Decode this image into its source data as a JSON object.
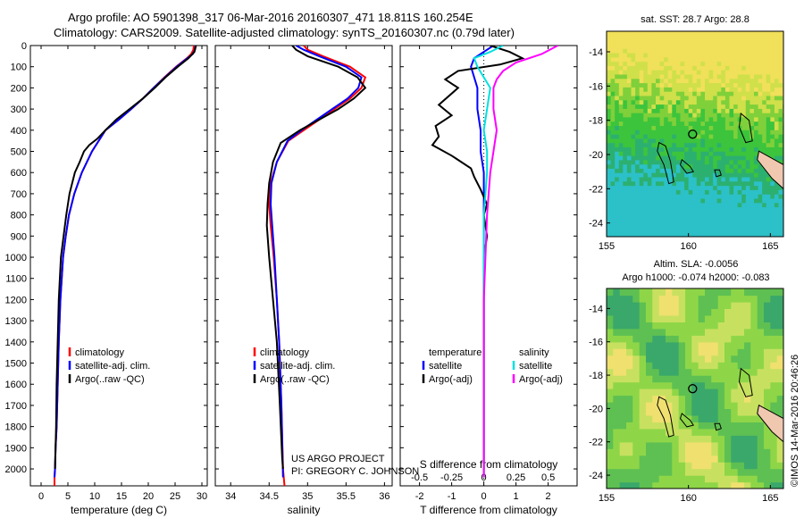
{
  "header": {
    "line1": "Argo profile: AO 5901398_317 06-Mar-2016 20160307_471 18.811S 160.254E",
    "line2": "Climatology: CARS2009. Satellite-adjusted climatology: synTS_20160307.nc (0.79d later)"
  },
  "colors": {
    "climatology": "#ff0000",
    "satellite": "#0000ff",
    "argo": "#000000",
    "sat_salinity": "#00e0e0",
    "argo_salinity": "#ff00ff"
  },
  "chart_data": [
    {
      "type": "line",
      "id": "temperature",
      "xlabel": "temperature (deg C)",
      "xlim": [
        -2,
        31
      ],
      "xticks": [
        0,
        5,
        10,
        15,
        20,
        25,
        30
      ],
      "ylim": [
        0,
        2080
      ],
      "yticks": [
        0,
        100,
        200,
        300,
        400,
        500,
        600,
        700,
        800,
        900,
        1000,
        1100,
        1200,
        1300,
        1400,
        1500,
        1600,
        1700,
        1800,
        1900,
        2000
      ],
      "legend": [
        "climatology",
        "satellite-adj. clim.",
        "Argo(..raw -QC)"
      ],
      "series": [
        {
          "name": "climatology",
          "color": "#ff0000",
          "x": [
            28.5,
            28.4,
            28.0,
            27.2,
            25.2,
            23.0,
            21.0,
            19.0,
            16.8,
            14.5,
            12.0,
            9.5,
            7.6,
            6.2,
            5.2,
            4.6,
            4.1,
            3.6,
            3.3,
            3.1,
            2.9,
            2.7,
            2.6,
            2.5,
            2.5
          ],
          "y": [
            0,
            20,
            40,
            60,
            100,
            150,
            200,
            250,
            300,
            350,
            400,
            500,
            600,
            700,
            800,
            900,
            1000,
            1200,
            1400,
            1600,
            1800,
            1900,
            2000,
            2040,
            2080
          ]
        },
        {
          "name": "satellite-adj. clim.",
          "color": "#0000ff",
          "x": [
            28.8,
            28.7,
            28.3,
            27.3,
            25.3,
            23.1,
            21.0,
            19.0,
            16.8,
            14.5,
            12.0,
            9.5,
            7.6,
            6.2,
            5.2,
            4.6,
            4.1,
            3.6,
            3.3,
            3.1,
            2.9,
            2.7,
            2.6,
            2.5
          ],
          "y": [
            0,
            20,
            40,
            60,
            100,
            150,
            200,
            250,
            300,
            350,
            400,
            500,
            600,
            700,
            800,
            900,
            1000,
            1200,
            1400,
            1600,
            1800,
            1900,
            2000,
            2040
          ]
        },
        {
          "name": "Argo(..raw -QC)",
          "color": "#000000",
          "x": [
            28.9,
            28.8,
            28.6,
            27.5,
            25.5,
            23.2,
            21.2,
            19.0,
            16.5,
            14.0,
            12.0,
            10.5,
            9.0,
            8.0,
            7.2,
            6.3,
            5.3,
            4.7,
            4.2,
            3.7,
            3.3,
            3.1,
            2.9,
            2.8,
            2.7,
            2.6
          ],
          "y": [
            0,
            10,
            30,
            60,
            100,
            150,
            200,
            250,
            300,
            350,
            400,
            440,
            470,
            500,
            550,
            600,
            700,
            800,
            900,
            1000,
            1200,
            1400,
            1600,
            1800,
            1900,
            2000
          ]
        }
      ]
    },
    {
      "type": "line",
      "id": "salinity",
      "xlabel": "salinity",
      "xlim": [
        33.8,
        36.1
      ],
      "xticks": [
        34,
        34.5,
        35,
        35.5,
        36
      ],
      "ylim": [
        0,
        2080
      ],
      "legend": [
        "climatology",
        "satellite-adj. clim.",
        "Argo(..raw -QC)"
      ],
      "annotation": [
        "US ARGO PROJECT",
        "PI: GREGORY C. JOHNSON"
      ],
      "series": [
        {
          "name": "climatology",
          "color": "#ff0000",
          "x": [
            34.95,
            35.0,
            35.2,
            35.55,
            35.75,
            35.7,
            35.55,
            35.35,
            35.15,
            34.95,
            34.75,
            34.6,
            34.52,
            34.5,
            34.52,
            34.56,
            34.6,
            34.63,
            34.66,
            34.68,
            34.7
          ],
          "y": [
            0,
            20,
            50,
            100,
            150,
            200,
            250,
            300,
            350,
            400,
            450,
            550,
            650,
            750,
            850,
            1000,
            1200,
            1400,
            1700,
            2000,
            2080
          ]
        },
        {
          "name": "satellite-adj. clim.",
          "color": "#0000ff",
          "x": [
            34.85,
            34.95,
            35.15,
            35.5,
            35.7,
            35.66,
            35.52,
            35.32,
            35.12,
            34.92,
            34.74,
            34.6,
            34.53,
            34.52,
            34.54,
            34.57,
            34.6,
            34.63,
            34.66,
            34.68
          ],
          "y": [
            0,
            20,
            50,
            100,
            150,
            200,
            250,
            300,
            350,
            400,
            450,
            550,
            650,
            750,
            850,
            1000,
            1200,
            1400,
            1700,
            2040
          ]
        },
        {
          "name": "Argo(..raw -QC)",
          "color": "#000000",
          "x": [
            34.8,
            34.85,
            35.0,
            35.4,
            35.65,
            35.75,
            35.6,
            35.4,
            35.15,
            34.9,
            34.65,
            34.55,
            34.5,
            34.48,
            34.47,
            34.5,
            34.55,
            34.6,
            34.64,
            34.67,
            34.68
          ],
          "y": [
            0,
            20,
            50,
            100,
            150,
            200,
            250,
            300,
            350,
            400,
            460,
            550,
            650,
            750,
            850,
            1000,
            1200,
            1400,
            1700,
            1950,
            2000
          ]
        }
      ]
    },
    {
      "type": "line",
      "id": "difference",
      "xlabel": "T difference from climatology",
      "xlabel_top": "S difference from climatology",
      "xlim": [
        -2.6,
        2.9
      ],
      "xticks": [
        -2,
        -1,
        0,
        1,
        2
      ],
      "xticks_top": [
        "-0.5",
        "-0.25",
        "0",
        "0.25",
        "0.5"
      ],
      "xticks_top_pos": [
        -2,
        -1,
        0,
        1,
        2
      ],
      "ylim": [
        0,
        2080
      ],
      "legend_left": {
        "title": "temperature",
        "items": [
          "satellite",
          "Argo(-adj)"
        ]
      },
      "legend_right": {
        "title": "salinity",
        "items": [
          "satellite",
          "Argo(-adj)"
        ]
      },
      "series": [
        {
          "name": "satellite",
          "color": "#0000ff",
          "x": [
            0.3,
            0.0,
            -0.3,
            -0.4,
            -0.3,
            -0.2,
            -0.2,
            -0.1,
            -0.1,
            0.0,
            0.0,
            0.0,
            0.0,
            0.0,
            0.0
          ],
          "y": [
            0,
            30,
            60,
            100,
            150,
            200,
            300,
            400,
            500,
            600,
            800,
            1000,
            1400,
            1800,
            2040
          ]
        },
        {
          "name": "Argo(-adj)",
          "color": "#000000",
          "x": [
            0.2,
            0.8,
            1.2,
            0.5,
            -0.8,
            -1.2,
            -0.8,
            -1.4,
            -1.0,
            -1.5,
            -1.4,
            -1.6,
            -1.0,
            -0.4,
            -0.3,
            -0.1,
            0.1,
            0.0,
            0.1,
            0.0,
            0.0
          ],
          "y": [
            0,
            30,
            60,
            90,
            120,
            160,
            200,
            280,
            330,
            380,
            430,
            470,
            520,
            580,
            620,
            680,
            750,
            800,
            900,
            1000,
            2000
          ]
        },
        {
          "name": "satellite",
          "color": "#00e0e0",
          "x": [
            0.6,
            0.2,
            -0.3,
            -0.2,
            0.0,
            0.2,
            0.1,
            0.0,
            0.1,
            0.1,
            0.0,
            0.0,
            0.0
          ],
          "y": [
            0,
            30,
            60,
            100,
            150,
            200,
            300,
            400,
            500,
            600,
            800,
            1200,
            2040
          ]
        },
        {
          "name": "Argo(-adj)",
          "color": "#ff00ff",
          "x": [
            2.3,
            1.8,
            1.0,
            0.6,
            0.4,
            0.3,
            0.3,
            0.4,
            0.3,
            0.2,
            0.1,
            0.0,
            0.0
          ],
          "y": [
            0,
            40,
            80,
            120,
            160,
            200,
            300,
            400,
            500,
            600,
            800,
            1200,
            2040
          ]
        }
      ]
    },
    {
      "type": "heatmap",
      "id": "sst_map",
      "title": "sat. SST: 28.7 Argo: 28.8",
      "xlim": [
        155,
        165.8
      ],
      "ylim": [
        -24.8,
        -12.8
      ],
      "xticks": [
        155,
        160,
        165
      ],
      "yticks": [
        -14,
        -16,
        -18,
        -20,
        -22,
        -24
      ],
      "argo_position": {
        "lon": 160.254,
        "lat": -18.811
      }
    },
    {
      "type": "heatmap",
      "id": "sla_map",
      "title": "Altim. SLA: -0.0056",
      "subtitle": "Argo h1000: -0.074 h2000: -0.083",
      "xlim": [
        155,
        165.8
      ],
      "ylim": [
        -24.8,
        -12.8
      ],
      "xticks": [
        155,
        160,
        165
      ],
      "yticks": [
        -14,
        -16,
        -18,
        -20,
        -22,
        -24
      ],
      "argo_position": {
        "lon": 160.254,
        "lat": -18.811
      }
    }
  ],
  "side_label": "©IMOS 14-Mar-2016 20:46:26"
}
